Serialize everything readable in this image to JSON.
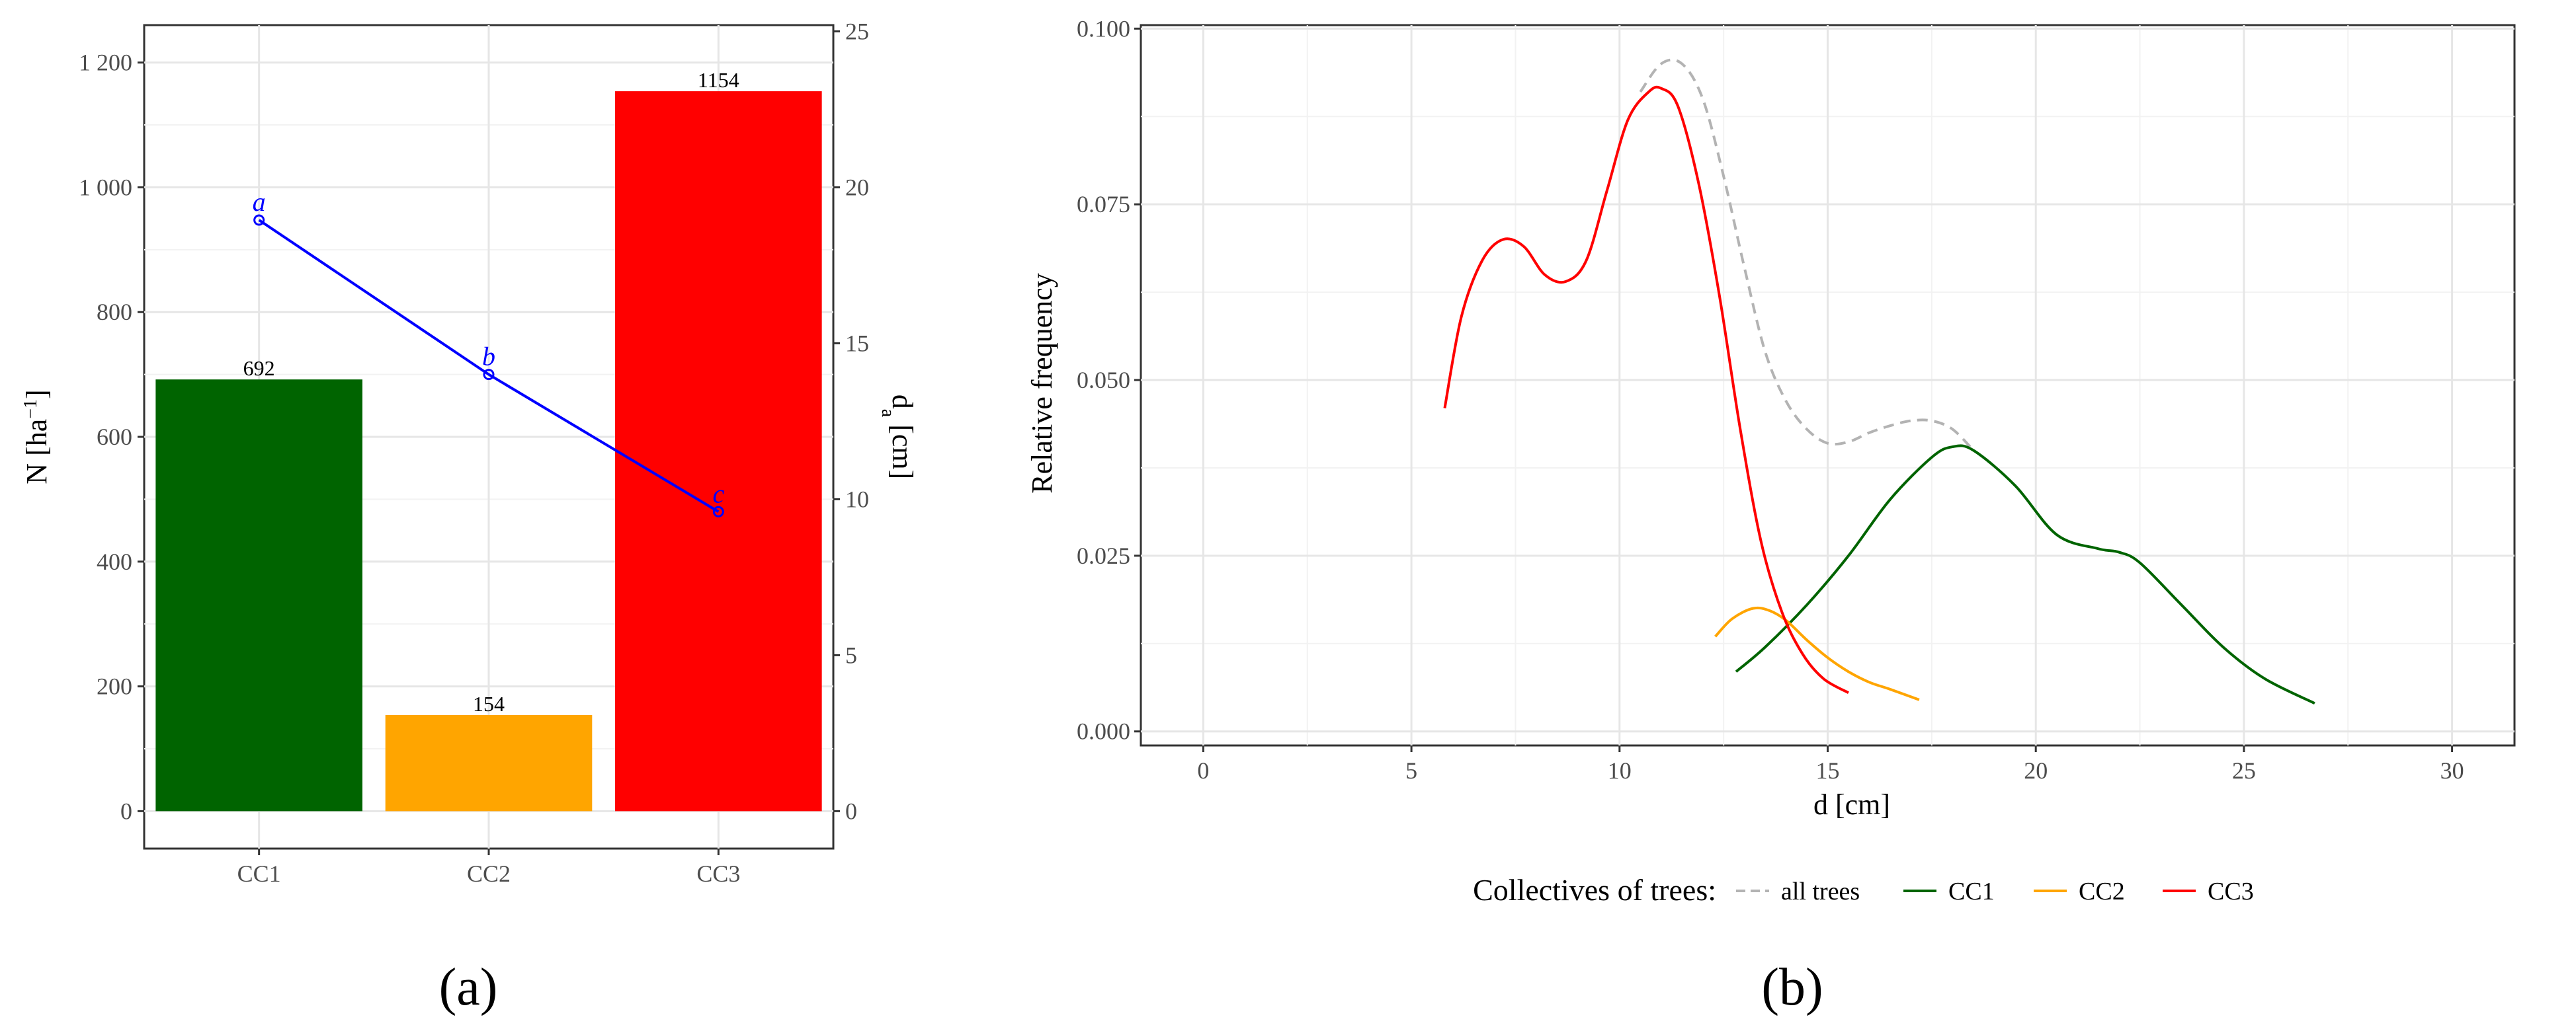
{
  "chart_data": [
    {
      "type": "bar",
      "caption": "(a)",
      "categories": [
        "CC1",
        "CC2",
        "CC3"
      ],
      "series": [
        {
          "values": [
            692,
            154,
            1154
          ],
          "colors": [
            "#006400",
            "#ffa500",
            "#ff0000"
          ],
          "labels": [
            "692",
            "154",
            "1154"
          ]
        },
        {
          "values": [
            18.95,
            14.0,
            9.6
          ],
          "color": "#0000ff",
          "axis": "right",
          "significance": [
            "a",
            "b",
            "c"
          ]
        }
      ],
      "ylabel": "N [ha⁻¹]",
      "ylabel_base": "N [ha",
      "ylabel_sup": "−1",
      "ylabel_close": "]",
      "y2label_base": "d",
      "y2label_sub": "a",
      "y2label_rest": " [cm]",
      "ylim": [
        -60,
        1260
      ],
      "y2lim": [
        -1.2,
        25.2
      ],
      "yticks": [
        "0",
        "200",
        "400",
        "600",
        "800",
        "1 000",
        "1 200"
      ],
      "yticks_values": [
        0,
        200,
        400,
        600,
        800,
        1000,
        1200
      ],
      "y2ticks": [
        "0",
        "5",
        "10",
        "15",
        "20",
        "25"
      ],
      "y2ticks_values": [
        0,
        5,
        10,
        15,
        20,
        25
      ],
      "grid": true
    },
    {
      "type": "line",
      "caption": "(b)",
      "xlabel": "d [cm]",
      "ylabel": "Relative frequency",
      "xlim": [
        -1.5,
        31.5
      ],
      "ylim": [
        -0.002,
        0.1005
      ],
      "xticks": [
        "0",
        "5",
        "10",
        "15",
        "20",
        "25",
        "30"
      ],
      "xticks_values": [
        0,
        5,
        10,
        15,
        20,
        25,
        30
      ],
      "yticks": [
        "0.000",
        "0.025",
        "0.050",
        "0.075",
        "0.100"
      ],
      "yticks_values": [
        0,
        0.025,
        0.05,
        0.075,
        0.1
      ],
      "legend_title": "Collectives of trees:",
      "legend_position": "bottom",
      "grid": true,
      "series": [
        {
          "name": "all trees",
          "color": "#b3b3b3",
          "dash": true,
          "x": [
            10.5,
            11.0,
            11.5,
            12.0,
            12.5,
            13.0,
            13.5,
            14.0,
            14.5,
            15.0,
            15.5,
            16.0,
            16.5,
            17.0,
            17.5,
            18.0,
            18.5
          ],
          "y": [
            0.091,
            0.095,
            0.095,
            0.09,
            0.079,
            0.066,
            0.054,
            0.047,
            0.043,
            0.041,
            0.0412,
            0.0425,
            0.0435,
            0.0442,
            0.0442,
            0.043,
            0.04
          ]
        },
        {
          "name": "CC1",
          "color": "#006400",
          "dash": false,
          "x": [
            12.8,
            13.5,
            14.5,
            15.5,
            16.5,
            17.5,
            18.0,
            18.5,
            19.5,
            20.5,
            21.5,
            22.0,
            22.5,
            23.5,
            24.5,
            25.5,
            26.7
          ],
          "y": [
            0.0085,
            0.012,
            0.018,
            0.025,
            0.033,
            0.039,
            0.0405,
            0.04,
            0.035,
            0.028,
            0.026,
            0.0255,
            0.024,
            0.018,
            0.012,
            0.0075,
            0.004
          ]
        },
        {
          "name": "CC2",
          "color": "#ffa500",
          "dash": false,
          "x": [
            12.3,
            12.7,
            13.2,
            13.6,
            14.0,
            14.5,
            15.0,
            15.5,
            16.0,
            16.5,
            17.2
          ],
          "y": [
            0.0135,
            0.016,
            0.0175,
            0.0172,
            0.0158,
            0.013,
            0.0105,
            0.0085,
            0.007,
            0.006,
            0.0045
          ]
        },
        {
          "name": "CC3",
          "color": "#ff0000",
          "dash": false,
          "x": [
            5.8,
            6.2,
            6.7,
            7.2,
            7.7,
            8.2,
            8.7,
            9.2,
            9.7,
            10.2,
            10.7,
            11.0,
            11.4,
            11.9,
            12.4,
            12.9,
            13.4,
            13.9,
            14.4,
            14.9,
            15.5
          ],
          "y": [
            0.046,
            0.059,
            0.067,
            0.07,
            0.069,
            0.065,
            0.064,
            0.067,
            0.077,
            0.087,
            0.091,
            0.0915,
            0.089,
            0.078,
            0.062,
            0.043,
            0.027,
            0.017,
            0.011,
            0.0075,
            0.0055
          ]
        }
      ]
    }
  ]
}
